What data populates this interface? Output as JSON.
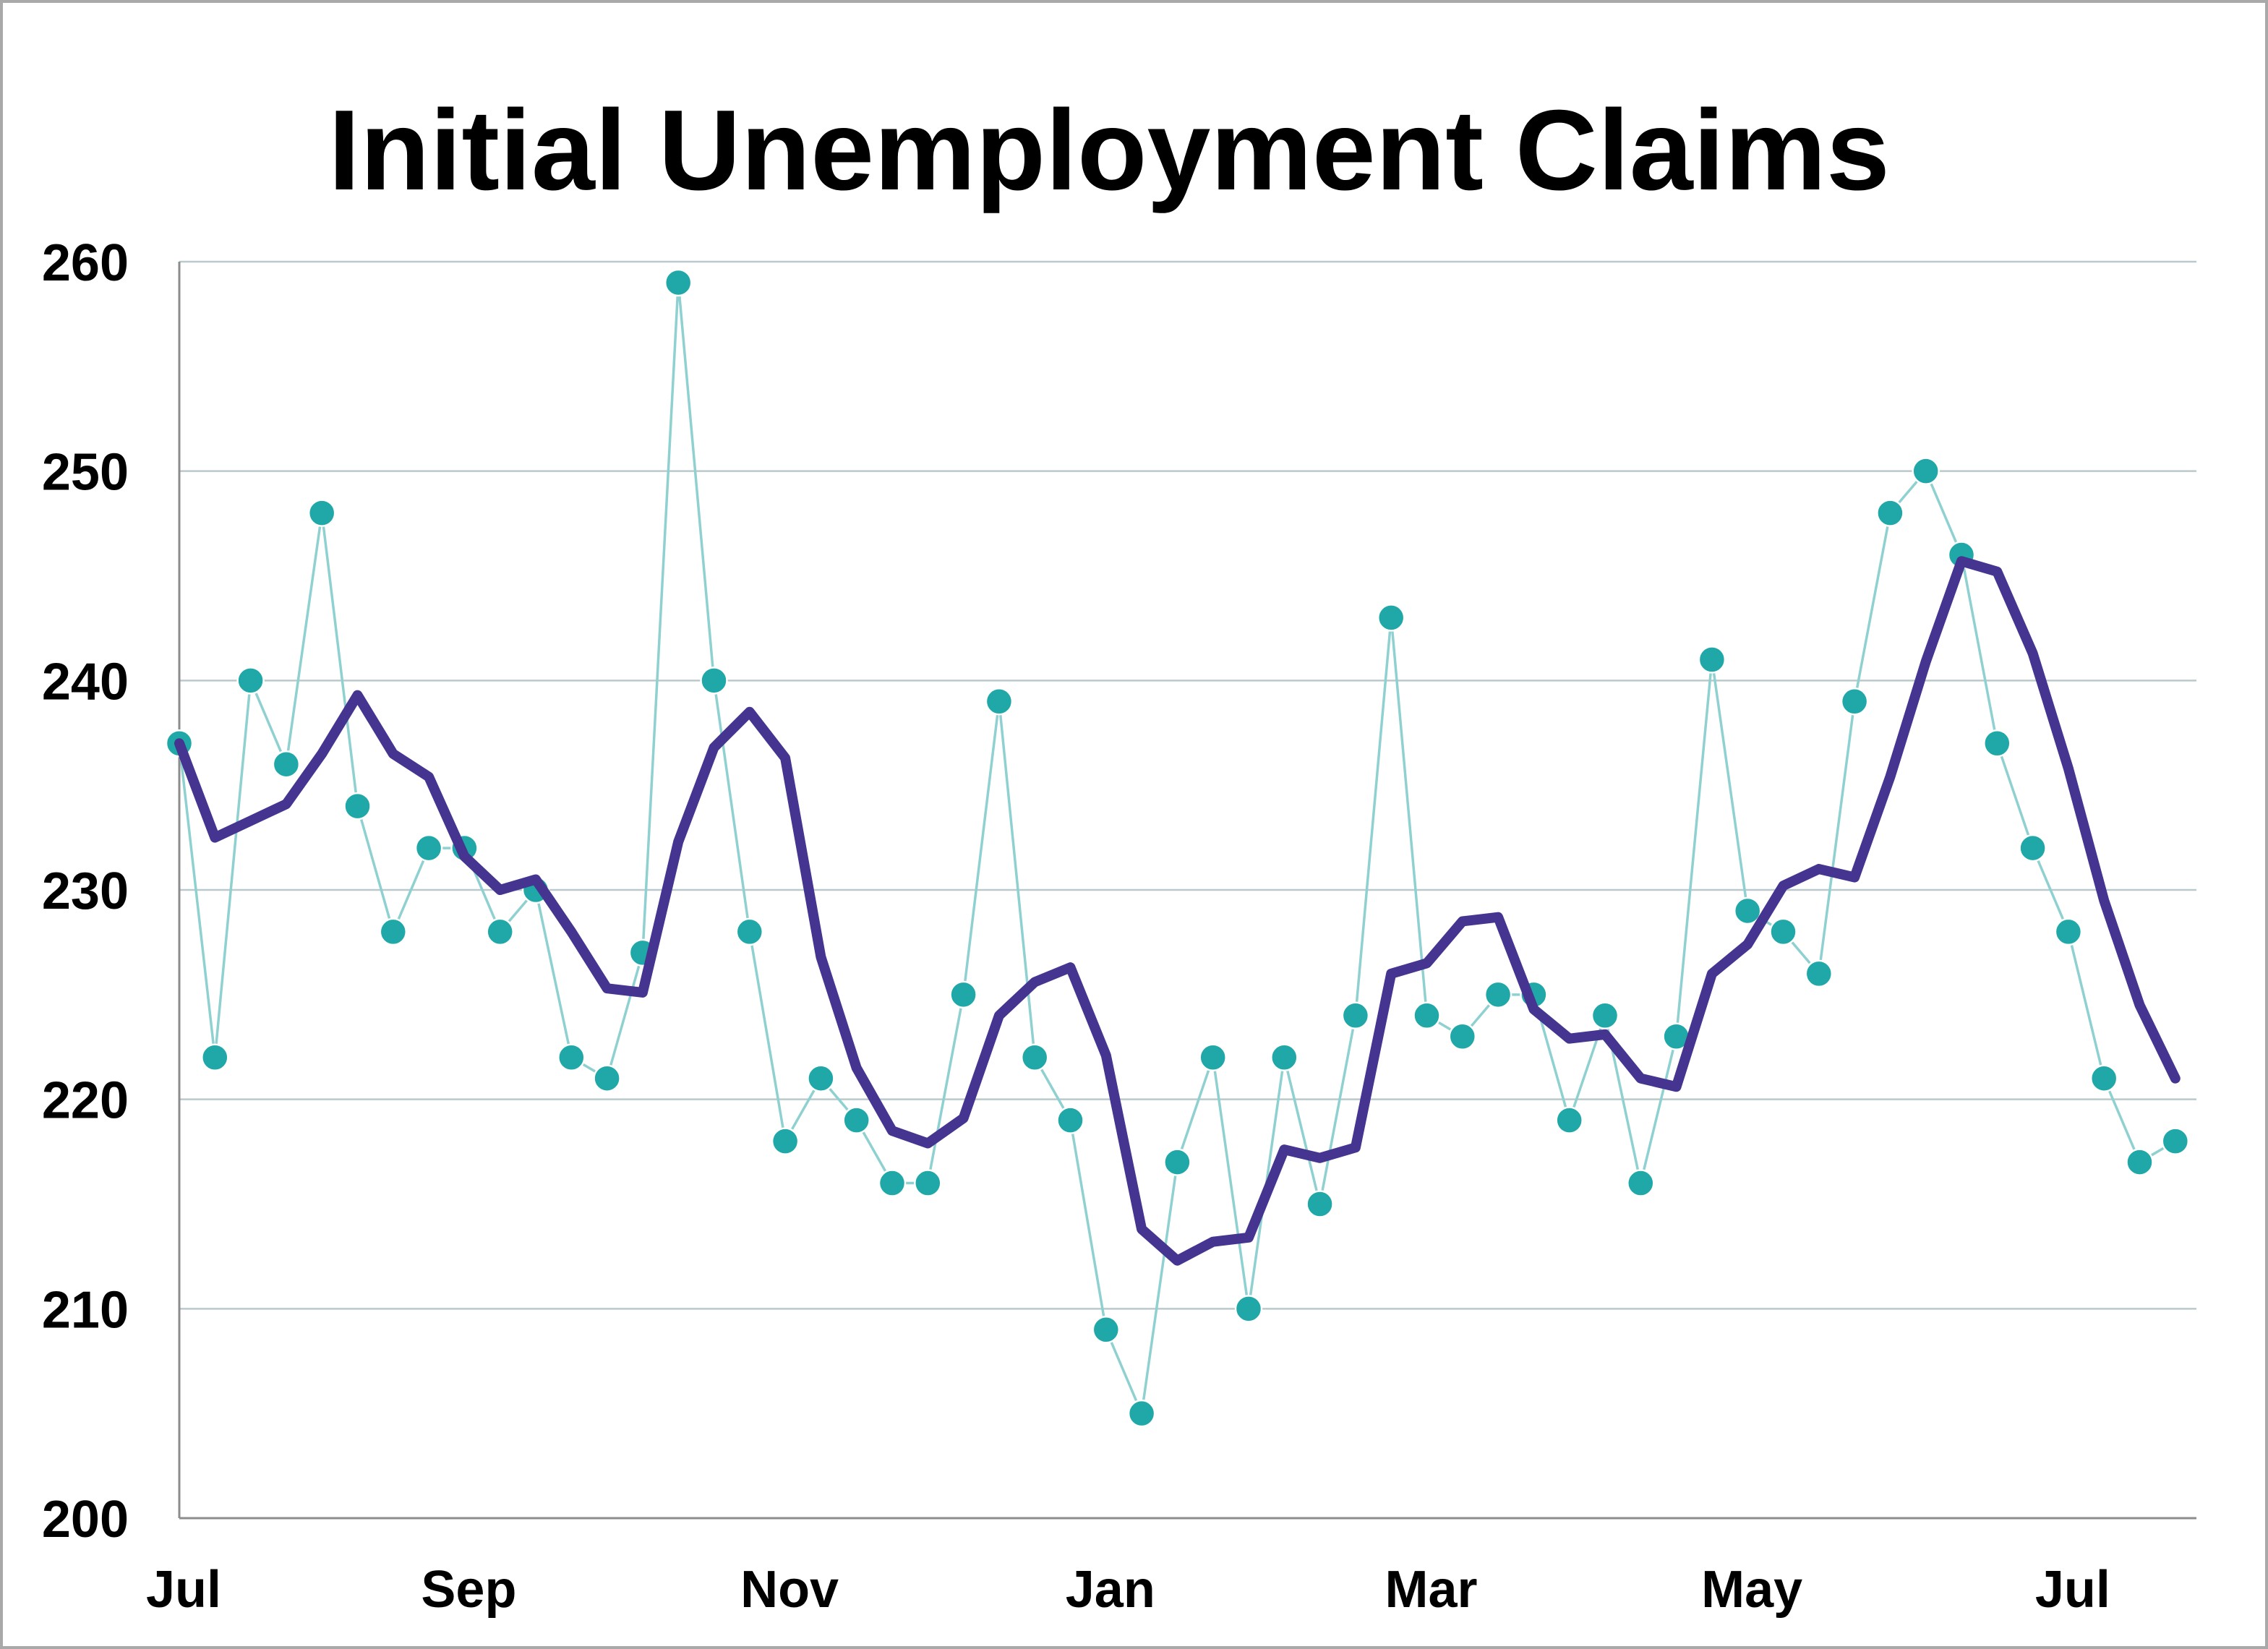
{
  "chart_data": {
    "type": "line",
    "title": "Initial Unemployment Claims",
    "xlabel": "",
    "ylabel": "",
    "ylim": [
      200,
      260
    ],
    "yticks": [
      "200",
      "210",
      "220",
      "230",
      "240",
      "250",
      "260"
    ],
    "xticks": [
      {
        "label": "Jul",
        "week": 0
      },
      {
        "label": "Sep",
        "week": 8
      },
      {
        "label": "Nov",
        "week": 17
      },
      {
        "label": "Jan",
        "week": 26
      },
      {
        "label": "Mar",
        "week": 35
      },
      {
        "label": "May",
        "week": 44
      },
      {
        "label": "Jul",
        "week": 53
      }
    ],
    "grid": true,
    "legend": "none",
    "series": [
      {
        "style": "dots-with-thin-line",
        "color": "#20a8a8",
        "line_color": "#8fd0d0",
        "values": [
          237,
          222,
          240,
          236,
          248,
          234,
          228,
          232,
          232,
          228,
          230,
          222,
          221,
          227,
          259,
          240,
          228,
          218,
          221,
          219,
          216,
          216,
          225,
          239,
          222,
          219,
          209,
          205,
          217,
          222,
          210,
          222,
          215,
          224,
          243,
          224,
          223,
          225,
          225,
          219,
          224,
          216,
          223,
          241,
          229,
          228,
          226,
          239,
          248,
          250,
          246,
          237,
          232,
          228,
          221,
          217,
          218
        ]
      },
      {
        "style": "thick-line",
        "color": "#453590",
        "values": [
          237,
          232.5,
          233.3,
          234.1,
          236.5,
          239.3,
          236.5,
          235.4,
          231.6,
          230,
          230.5,
          228,
          225.3,
          225.1,
          232.3,
          236.8,
          238.5,
          236.3,
          226.8,
          221.5,
          218.5,
          217.9,
          219.1,
          224,
          225.6,
          226.3,
          222.1,
          213.8,
          212.3,
          213.2,
          213.4,
          217.6,
          217.2,
          217.7,
          226,
          226.5,
          228.5,
          228.7,
          224.3,
          222.9,
          223.1,
          221,
          220.6,
          226,
          227.4,
          230.2,
          231,
          230.6,
          235.4,
          240.9,
          245.7,
          245.2,
          241.3,
          235.8,
          229.5,
          224.5,
          221
        ]
      }
    ]
  }
}
